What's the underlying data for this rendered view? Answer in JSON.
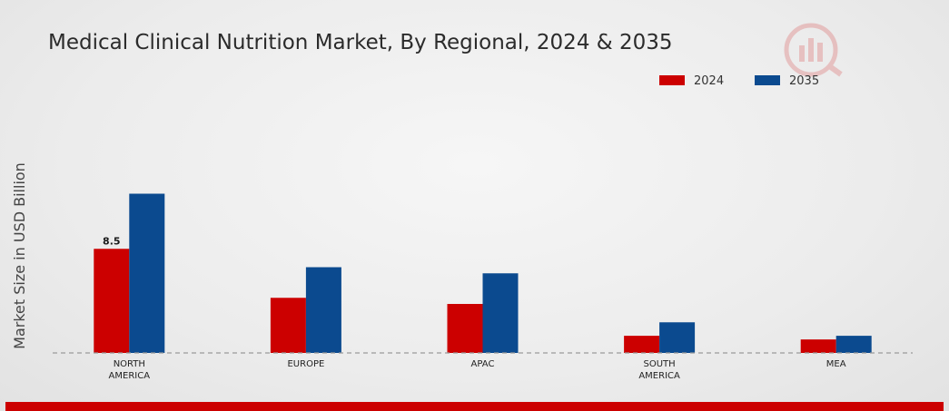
{
  "chart_data": {
    "type": "bar",
    "title": "Medical Clinical Nutrition Market, By Regional, 2024 & 2035",
    "ylabel": "Market Size in USD Billion",
    "xlabel": "",
    "categories": [
      "NORTH AMERICA",
      "EUROPE",
      "APAC",
      "SOUTH AMERICA",
      "MEA"
    ],
    "category_lines": [
      [
        "NORTH",
        "AMERICA"
      ],
      [
        "EUROPE"
      ],
      [
        "APAC"
      ],
      [
        "SOUTH",
        "AMERICA"
      ],
      [
        "MEA"
      ]
    ],
    "series": [
      {
        "name": "2024",
        "color": "#cc0000",
        "values": [
          8.5,
          4.5,
          4.0,
          1.4,
          1.1
        ]
      },
      {
        "name": "2035",
        "color": "#0b4a8f",
        "values": [
          13.0,
          7.0,
          6.5,
          2.5,
          1.4
        ]
      }
    ],
    "data_labels": [
      {
        "series": 0,
        "category": 0,
        "text": "8.5"
      }
    ],
    "ylim": [
      0,
      20
    ],
    "grid": false,
    "baseline_style": "dashed",
    "legend_position": "top-right",
    "footer_bar_color": "#cc0000"
  }
}
